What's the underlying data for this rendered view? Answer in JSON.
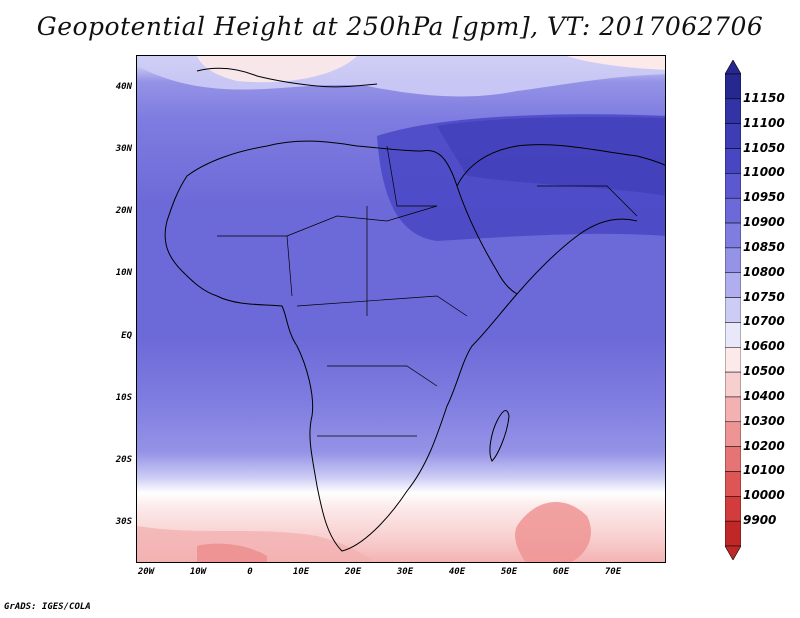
{
  "title": "Geopotential Height at 250hPa [gpm], VT: 2017062706",
  "footer": "GrADS: IGES/COLA",
  "map": {
    "lat_labels": [
      "40N",
      "30N",
      "20N",
      "10N",
      "EQ",
      "10S",
      "20S",
      "30S"
    ],
    "lon_labels": [
      "20W",
      "10W",
      "0",
      "10E",
      "20E",
      "30E",
      "40E",
      "50E",
      "60E",
      "70E"
    ]
  },
  "colorbar": {
    "levels": [
      "11150",
      "11100",
      "11050",
      "11000",
      "10950",
      "10900",
      "10850",
      "10800",
      "10750",
      "10700",
      "10600",
      "10500",
      "10400",
      "10300",
      "10200",
      "10100",
      "10000",
      "9900"
    ],
    "colors": [
      "#26278f",
      "#3332a6",
      "#3e3db6",
      "#4946c4",
      "#5c58cf",
      "#6c69d8",
      "#7f7de0",
      "#9593e6",
      "#b0aeee",
      "#cdccf5",
      "#e9e8fb",
      "#fce9e9",
      "#f8cfcf",
      "#f3b1b1",
      "#ee9494",
      "#e77474",
      "#de5555",
      "#d23c3c",
      "#c02828"
    ]
  }
}
